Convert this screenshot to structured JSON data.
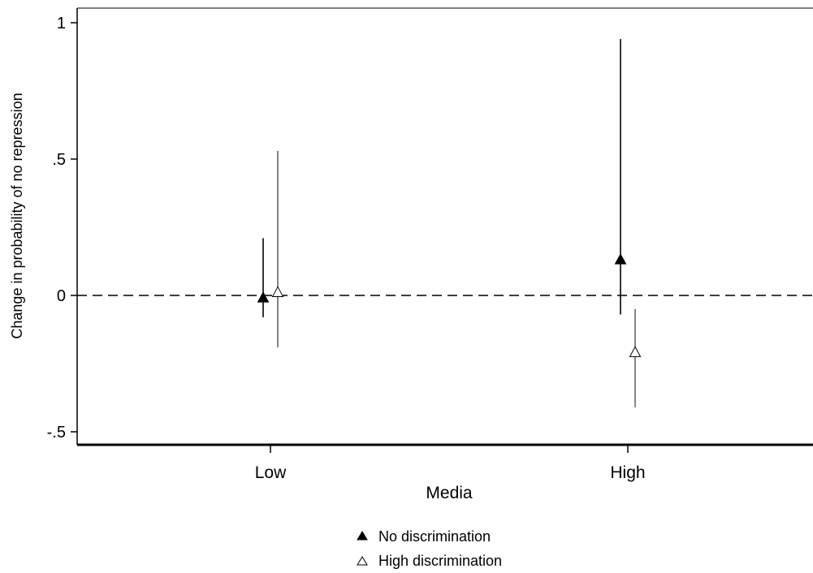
{
  "chart_data": {
    "type": "scatter",
    "title": "",
    "xlabel": "Media",
    "ylabel": "Change in probability of no repression",
    "categories": [
      "Low",
      "High"
    ],
    "ylim": [
      -0.55,
      1.02
    ],
    "yticks": [
      -0.5,
      0,
      0.5,
      1
    ],
    "ytick_labels": [
      "-.5",
      "0",
      ".5",
      "1"
    ],
    "reference_line": {
      "y": 0,
      "style": "dashed"
    },
    "series": [
      {
        "name": "No discrimination",
        "marker": "filled-triangle",
        "values": [
          -0.01,
          0.13
        ],
        "ci_low": [
          -0.08,
          -0.07
        ],
        "ci_high": [
          0.21,
          0.94
        ]
      },
      {
        "name": "High discrimination",
        "marker": "hollow-triangle",
        "values": [
          0.01,
          -0.21
        ],
        "ci_low": [
          -0.19,
          -0.41
        ],
        "ci_high": [
          0.53,
          -0.05
        ]
      }
    ],
    "legend_position": "bottom-center",
    "grid": false
  }
}
